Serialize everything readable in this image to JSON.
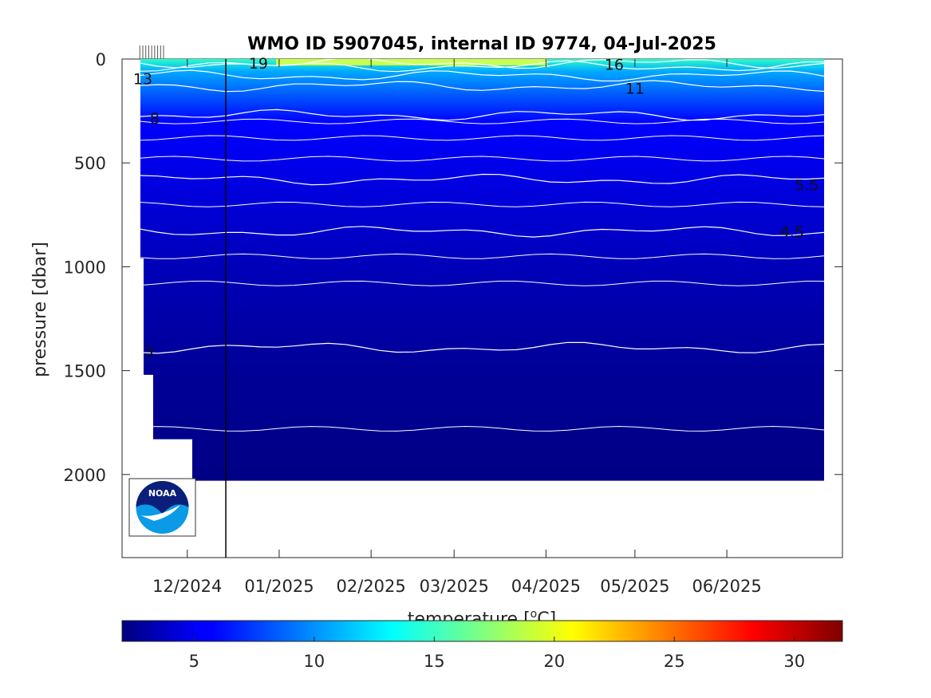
{
  "chart_data": {
    "type": "heatmap",
    "subtype": "filled-contour",
    "title": "WMO ID 5907045, internal ID 9774, 04-Jul-2025",
    "ylabel": "pressure [dbar]",
    "colorbar_label": "temperature [°C]",
    "colorbar_label_text": "temperature [",
    "colorbar_label_unit_sup": "o",
    "colorbar_label_unit_tail": "C]",
    "ylim": [
      0,
      2400
    ],
    "y_reversed": true,
    "y_ticks": [
      0,
      500,
      1000,
      1500,
      2000
    ],
    "y_tick_labels": [
      "0",
      "500",
      "1000",
      "1500",
      "2000"
    ],
    "x_start": "2024-11-09",
    "x_end": "2025-07-10",
    "x_ticks": [
      "2024-12-01",
      "2025-01-01",
      "2025-02-01",
      "2025-03-01",
      "2025-04-01",
      "2025-05-01",
      "2025-06-01"
    ],
    "x_tick_labels": [
      "12/2024",
      "01/2025",
      "02/2025",
      "03/2025",
      "04/2025",
      "05/2025",
      "06/2025"
    ],
    "deployment_marker_date": "2024-12-14",
    "colorbar_range": [
      2,
      32
    ],
    "colorbar_ticks": [
      5,
      10,
      15,
      20,
      25,
      30
    ],
    "colorbar_tick_labels": [
      "5",
      "10",
      "15",
      "20",
      "25",
      "30"
    ],
    "colormap": "jet",
    "profile_dates": [
      "2024-11-15",
      "2024-11-16",
      "2024-11-17",
      "2024-11-18",
      "2024-11-19",
      "2024-11-20",
      "2024-11-21",
      "2024-11-22",
      "2024-11-23"
    ],
    "contours": [
      {
        "level": 19,
        "label": "19",
        "depth_dbar": 20
      },
      {
        "level": 16,
        "label": "16",
        "depth_dbar": 35
      },
      {
        "level": 13,
        "label": "13",
        "depth_dbar": 80
      },
      {
        "level": 11,
        "label": "11",
        "depth_dbar": 130
      },
      {
        "level": 8,
        "label": "8",
        "depth_dbar": 270
      },
      {
        "level": 5.5,
        "label": "5.5",
        "depth_dbar": 580
      },
      {
        "level": 4.5,
        "label": "4.5",
        "depth_dbar": 830
      },
      {
        "level": 3,
        "label": "3",
        "depth_dbar": 1390
      }
    ],
    "data_bottom_dbar": 2030
  },
  "logo": {
    "text": "NOAA",
    "icon": "noaa-logo-icon",
    "colors": {
      "top": "#0b1f7a",
      "bottom": "#0a9ae6",
      "bird": "#ffffff"
    }
  }
}
